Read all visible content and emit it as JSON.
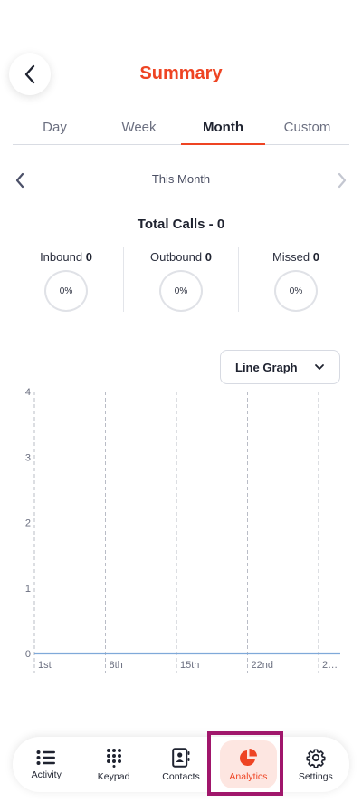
{
  "header": {
    "title": "Summary"
  },
  "tabs": [
    {
      "label": "Day",
      "active": false
    },
    {
      "label": "Week",
      "active": false
    },
    {
      "label": "Month",
      "active": true
    },
    {
      "label": "Custom",
      "active": false
    }
  ],
  "period": {
    "label": "This Month"
  },
  "summary": {
    "total_label": "Total Calls - 0",
    "stats": [
      {
        "label": "Inbound",
        "count": "0",
        "percent": "0%"
      },
      {
        "label": "Outbound",
        "count": "0",
        "percent": "0%"
      },
      {
        "label": "Missed",
        "count": "0",
        "percent": "0%"
      }
    ]
  },
  "graph_select": {
    "value": "Line Graph"
  },
  "chart_data": {
    "type": "line",
    "categories": [
      "1st",
      "8th",
      "15th",
      "22nd",
      "2…"
    ],
    "series": [
      {
        "values": [
          0,
          0,
          0,
          0,
          0
        ]
      }
    ],
    "yticks": [
      "0",
      "1",
      "2",
      "3",
      "4"
    ],
    "ylim": [
      0,
      4
    ],
    "grid": "vertical dashed",
    "color": "#7fa9d9"
  },
  "bottom_nav": [
    {
      "label": "Activity",
      "icon": "list-icon",
      "active": false
    },
    {
      "label": "Keypad",
      "icon": "keypad-icon",
      "active": false
    },
    {
      "label": "Contacts",
      "icon": "contacts-icon",
      "active": false
    },
    {
      "label": "Analytics",
      "icon": "pie-chart-icon",
      "active": true
    },
    {
      "label": "Settings",
      "icon": "gear-icon",
      "active": false
    }
  ],
  "colors": {
    "accent": "#ee4423",
    "highlight": "#a0166b"
  }
}
